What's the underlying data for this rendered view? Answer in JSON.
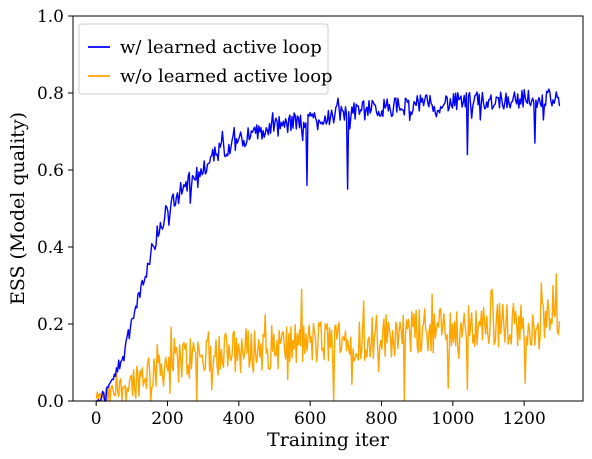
{
  "chart_data": {
    "type": "line",
    "xlabel": "Training iter",
    "ylabel": "ESS (Model quality)",
    "xlim": [
      -65,
      1365
    ],
    "ylim": [
      0.0,
      1.0
    ],
    "xticks": [
      0,
      200,
      400,
      600,
      800,
      1000,
      1200
    ],
    "xtick_labels": [
      "0",
      "200",
      "400",
      "600",
      "800",
      "1000",
      "1200"
    ],
    "yticks": [
      0.0,
      0.2,
      0.4,
      0.6,
      0.8,
      1.0
    ],
    "ytick_labels": [
      "0.0",
      "0.2",
      "0.4",
      "0.6",
      "0.8",
      "1.0"
    ],
    "grid": false,
    "legend_position": "top-left",
    "series": [
      {
        "name": "w/ learned active loop",
        "color": "#0000ff",
        "x_range": [
          0,
          1300
        ],
        "trend_x": [
          0,
          25,
          50,
          75,
          100,
          125,
          150,
          175,
          200,
          250,
          300,
          350,
          400,
          500,
          600,
          700,
          800,
          900,
          1000,
          1100,
          1200,
          1300
        ],
        "trend_y": [
          0.0,
          0.02,
          0.06,
          0.12,
          0.2,
          0.29,
          0.37,
          0.44,
          0.5,
          0.56,
          0.61,
          0.65,
          0.68,
          0.71,
          0.73,
          0.75,
          0.76,
          0.77,
          0.775,
          0.78,
          0.785,
          0.79
        ],
        "noise_amplitude": 0.025,
        "dips": [
          [
            590,
            0.56
          ],
          [
            705,
            0.55
          ],
          [
            1040,
            0.64
          ],
          [
            1230,
            0.67
          ],
          [
            1255,
            0.73
          ]
        ]
      },
      {
        "name": "w/o learned active loop",
        "color": "#ffa500",
        "x_range": [
          0,
          1300
        ],
        "trend_x": [
          0,
          50,
          100,
          150,
          200,
          300,
          400,
          500,
          600,
          700,
          800,
          900,
          1000,
          1100,
          1200,
          1300
        ],
        "trend_y": [
          0.0,
          0.02,
          0.05,
          0.08,
          0.1,
          0.12,
          0.13,
          0.14,
          0.15,
          0.16,
          0.17,
          0.18,
          0.19,
          0.2,
          0.2,
          0.21
        ],
        "noise_amplitude": 0.06,
        "peaks": [
          [
            1290,
            0.33
          ],
          [
            1280,
            0.3
          ],
          [
            1110,
            0.29
          ]
        ],
        "dips": [
          [
            1280,
            0.04
          ],
          [
            1040,
            0.03
          ]
        ]
      }
    ]
  }
}
